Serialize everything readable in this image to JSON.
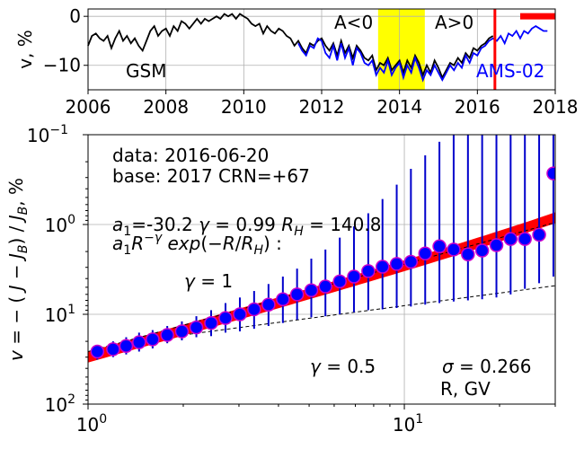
{
  "chart_data": [
    {
      "type": "line",
      "ylabel": "v, %",
      "xlim": [
        2006,
        2018
      ],
      "ylim": [
        -15,
        1.5
      ],
      "grid": true,
      "x_ticks": [
        2006,
        2008,
        2010,
        2012,
        2014,
        2016,
        2018
      ],
      "x_tick_labels": [
        "2006",
        "2008",
        "2010",
        "2012",
        "2014",
        "2016",
        "2018"
      ],
      "y_ticks": [
        0,
        -10
      ],
      "y_tick_labels": [
        "0",
        "−10"
      ],
      "annotations": {
        "gsm": "GSM",
        "a_neg": "A<0",
        "a_pos": "A>0",
        "ams": "AMS-02"
      },
      "shaded_band": {
        "x": [
          2013.45,
          2014.65
        ],
        "color": "#ffff00"
      },
      "marker_line_x": 2016.45,
      "short_bar": {
        "x": [
          2017.1,
          2018
        ],
        "y": 0
      },
      "series": [
        {
          "name": "GSM",
          "color": "#000000",
          "x": [
            2006.0,
            2006.1,
            2006.2,
            2006.3,
            2006.4,
            2006.5,
            2006.6,
            2006.7,
            2006.8,
            2006.9,
            2007.0,
            2007.1,
            2007.2,
            2007.3,
            2007.4,
            2007.5,
            2007.6,
            2007.7,
            2007.8,
            2007.9,
            2008.0,
            2008.1,
            2008.2,
            2008.3,
            2008.4,
            2008.5,
            2008.6,
            2008.7,
            2008.8,
            2008.9,
            2009.0,
            2009.1,
            2009.2,
            2009.3,
            2009.4,
            2009.5,
            2009.6,
            2009.7,
            2009.8,
            2009.9,
            2010.0,
            2010.1,
            2010.2,
            2010.3,
            2010.4,
            2010.5,
            2010.6,
            2010.7,
            2010.8,
            2010.9,
            2011.0,
            2011.1,
            2011.2,
            2011.3,
            2011.4,
            2011.5,
            2011.6,
            2011.7,
            2011.8,
            2011.9,
            2012.0,
            2012.1,
            2012.2,
            2012.3,
            2012.4,
            2012.5,
            2012.6,
            2012.7,
            2012.8,
            2012.9,
            2013.0,
            2013.1,
            2013.2,
            2013.3,
            2013.4,
            2013.5,
            2013.6,
            2013.7,
            2013.8,
            2013.9,
            2014.0,
            2014.1,
            2014.2,
            2014.3,
            2014.4,
            2014.5,
            2014.6,
            2014.7,
            2014.8,
            2014.9,
            2015.0,
            2015.1,
            2015.2,
            2015.3,
            2015.4,
            2015.5,
            2015.6,
            2015.7,
            2015.8,
            2015.9,
            2016.0,
            2016.1,
            2016.2,
            2016.3,
            2016.4
          ],
          "values": [
            -6.0,
            -4.0,
            -3.5,
            -4.5,
            -5.0,
            -4.0,
            -6.5,
            -4.5,
            -3.0,
            -5.0,
            -4.0,
            -5.5,
            -4.5,
            -6.0,
            -7.0,
            -5.0,
            -3.0,
            -2.0,
            -4.0,
            -3.0,
            -2.5,
            -4.0,
            -2.0,
            -3.0,
            -1.0,
            -1.5,
            -2.5,
            -1.5,
            -0.5,
            -1.5,
            -0.5,
            -1.0,
            -0.5,
            0.0,
            -0.5,
            0.5,
            0.0,
            0.5,
            -0.5,
            0.5,
            0.0,
            -0.5,
            -1.5,
            -2.0,
            -1.5,
            -3.5,
            -2.0,
            -3.0,
            -3.5,
            -2.5,
            -3.0,
            -4.0,
            -4.5,
            -6.0,
            -5.0,
            -6.5,
            -7.5,
            -5.5,
            -6.0,
            -5.0,
            -4.5,
            -6.0,
            -7.0,
            -5.5,
            -8.0,
            -5.0,
            -7.5,
            -6.0,
            -8.5,
            -6.0,
            -7.0,
            -8.5,
            -9.0,
            -8.0,
            -11.0,
            -9.5,
            -10.0,
            -8.5,
            -11.0,
            -10.0,
            -9.0,
            -11.5,
            -9.0,
            -10.5,
            -8.0,
            -9.5,
            -12.0,
            -10.0,
            -11.5,
            -9.0,
            -10.5,
            -12.5,
            -11.0,
            -9.5,
            -10.0,
            -8.5,
            -9.5,
            -7.5,
            -8.5,
            -6.5,
            -7.0,
            -6.0,
            -5.5,
            -4.5,
            -4.0
          ]
        },
        {
          "name": "AMS-02",
          "color": "#0000ff",
          "x": [
            2011.4,
            2011.5,
            2011.6,
            2011.7,
            2011.8,
            2011.9,
            2012.0,
            2012.1,
            2012.2,
            2012.3,
            2012.4,
            2012.5,
            2012.6,
            2012.7,
            2012.8,
            2012.9,
            2013.0,
            2013.1,
            2013.2,
            2013.3,
            2013.4,
            2013.5,
            2013.6,
            2013.7,
            2013.8,
            2013.9,
            2014.0,
            2014.1,
            2014.2,
            2014.3,
            2014.4,
            2014.5,
            2014.6,
            2014.7,
            2014.8,
            2014.9,
            2015.0,
            2015.1,
            2015.2,
            2015.3,
            2015.4,
            2015.5,
            2015.6,
            2015.7,
            2015.8,
            2015.9,
            2016.0,
            2016.1,
            2016.2,
            2016.3,
            2016.4,
            2016.5,
            2016.6,
            2016.7,
            2016.8,
            2016.9,
            2017.0,
            2017.1,
            2017.2,
            2017.3,
            2017.4,
            2017.5,
            2017.6,
            2017.7,
            2017.8
          ],
          "values": [
            -5.5,
            -7.0,
            -8.0,
            -6.0,
            -6.5,
            -4.5,
            -5.0,
            -7.5,
            -8.5,
            -6.0,
            -9.0,
            -5.5,
            -8.5,
            -6.5,
            -10.0,
            -6.5,
            -7.5,
            -9.5,
            -10.0,
            -9.0,
            -12.0,
            -10.5,
            -11.5,
            -9.0,
            -12.0,
            -10.5,
            -9.5,
            -12.5,
            -10.0,
            -11.5,
            -8.5,
            -10.5,
            -13.0,
            -11.0,
            -12.0,
            -10.0,
            -11.5,
            -13.0,
            -11.5,
            -10.0,
            -11.0,
            -9.5,
            -10.5,
            -8.0,
            -9.5,
            -7.5,
            -8.0,
            -6.5,
            -6.0,
            -5.0,
            -4.5,
            -5.0,
            -4.0,
            -5.5,
            -3.5,
            -4.0,
            -3.0,
            -4.5,
            -3.0,
            -3.5,
            -2.5,
            -2.0,
            -2.5,
            -3.0,
            -3.0
          ]
        }
      ]
    },
    {
      "type": "scatter",
      "xscale": "log",
      "yscale": "log",
      "y_inverted": true,
      "xlabel": "R, GV",
      "ylabel": "v = − ( J − J_B) / J_B, %",
      "xlim": [
        1,
        30
      ],
      "ylim": [
        0.1,
        100
      ],
      "grid": true,
      "x_tick_labels": [
        "10^0",
        "10^1"
      ],
      "y_tick_labels": [
        "10^{-1}",
        "10^0",
        "10^1",
        "10^2"
      ],
      "annotations": {
        "data_line": "data: 2016-06-20",
        "base_line": "base: 2017   CRN=+67",
        "param_line": "a_1=-30.2  γ = 0.99  R_H = 140.8",
        "formula_line": "a_1R^{−γ} exp(−R/R_H) :",
        "gamma_1": "γ = 1",
        "gamma_05": "γ = 0.5",
        "sigma": "σ = 0.266"
      },
      "fit": {
        "a1": -30.2,
        "gamma": 0.99,
        "RH": 140.8,
        "band_half_width_factor": 1.15
      },
      "ref_gamma_1": {
        "x": [
          1.0,
          30.0
        ],
        "y": [
          26.0,
          0.95
        ]
      },
      "ref_gamma_05": {
        "x": [
          2.0,
          30.0
        ],
        "y": [
          17.0,
          4.8
        ]
      },
      "points": {
        "x": [
          1.07,
          1.2,
          1.32,
          1.45,
          1.6,
          1.78,
          1.98,
          2.2,
          2.45,
          2.72,
          3.02,
          3.35,
          3.72,
          4.13,
          4.58,
          5.08,
          5.63,
          6.25,
          6.93,
          7.69,
          8.53,
          9.46,
          10.49,
          11.64,
          12.91,
          14.32,
          15.89,
          17.62,
          19.55,
          21.68,
          24.05,
          26.68,
          29.6
        ],
        "values": [
          26.0,
          24.5,
          22.5,
          20.5,
          19.0,
          17.0,
          15.5,
          14.0,
          12.5,
          11.0,
          10.0,
          8.8,
          7.8,
          6.8,
          6.0,
          5.4,
          4.9,
          4.3,
          3.8,
          3.3,
          2.95,
          2.75,
          2.6,
          2.1,
          1.75,
          1.9,
          2.15,
          1.95,
          1.7,
          1.45,
          1.45,
          1.3,
          0.27
        ],
        "err_lo": [
          22.0,
          20.0,
          18.0,
          16.0,
          15.0,
          13.5,
          12.0,
          10.5,
          9.0,
          7.5,
          6.5,
          5.5,
          4.6,
          3.8,
          3.1,
          2.4,
          1.9,
          1.4,
          1.05,
          0.75,
          0.52,
          0.36,
          0.24,
          0.17,
          0.12,
          0.1,
          0.1,
          0.1,
          0.1,
          0.1,
          0.1,
          0.1,
          0.1
        ],
        "err_hi": [
          32.0,
          30.0,
          28.0,
          26.0,
          24.0,
          21.0,
          19.5,
          18.0,
          17.5,
          16.0,
          15.5,
          14.5,
          13.5,
          12.5,
          11.5,
          10.8,
          10.5,
          10.0,
          9.5,
          9.0,
          8.8,
          8.5,
          8.2,
          7.8,
          7.5,
          7.2,
          7.0,
          6.8,
          6.5,
          6.0,
          5.2,
          4.5,
          3.8
        ]
      }
    }
  ]
}
